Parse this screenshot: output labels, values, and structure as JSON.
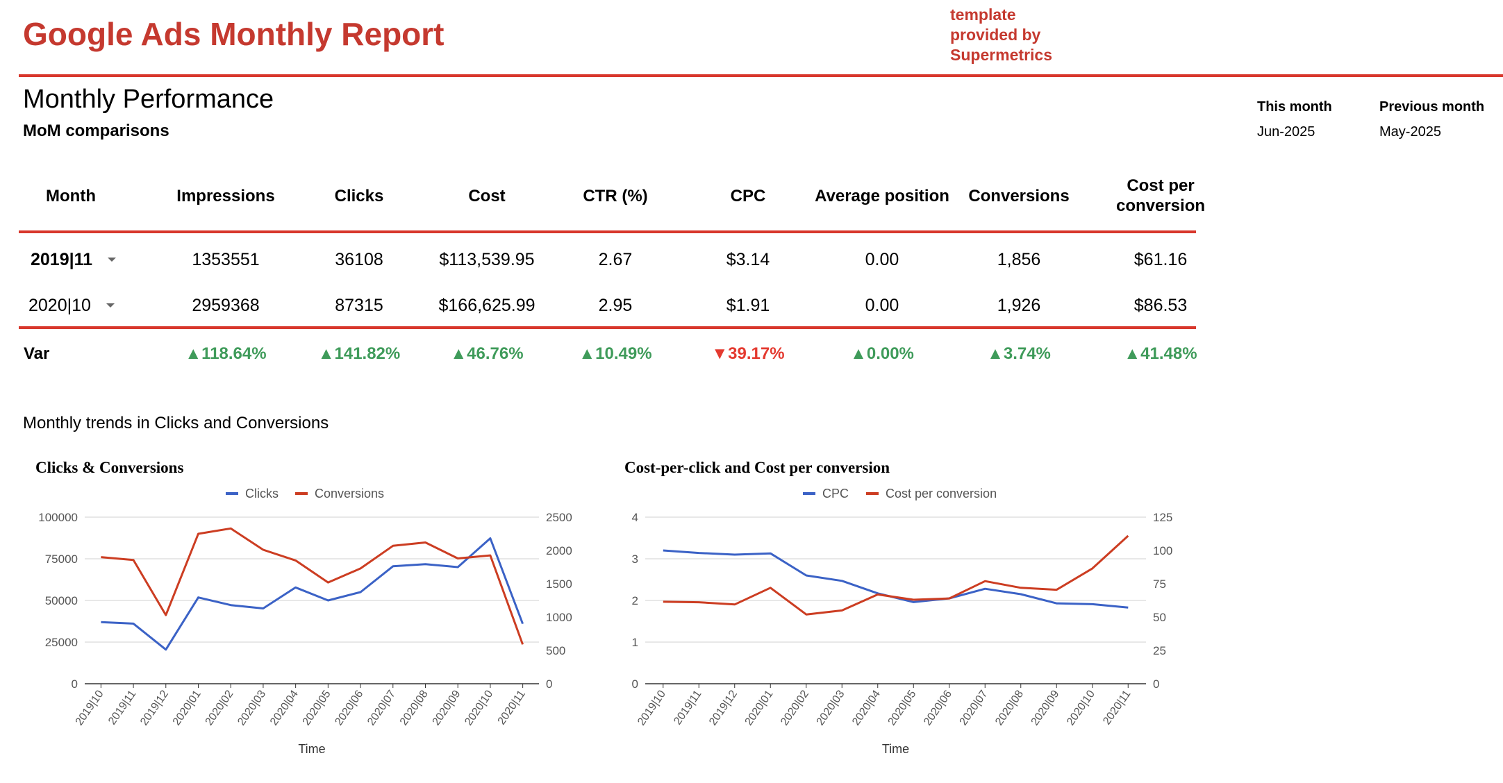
{
  "header": {
    "title": "Google Ads Monthly Report",
    "credit_line1": "template",
    "credit_line2": "provided by",
    "credit_line3": "Supermetrics"
  },
  "section": {
    "title": "Monthly Performance",
    "subtitle": "MoM comparisons"
  },
  "period": {
    "this_month_label": "This month",
    "this_month_value": "Jun-2025",
    "previous_month_label": "Previous month",
    "previous_month_value": "May-2025"
  },
  "table": {
    "headers": [
      "Month",
      "Impressions",
      "Clicks",
      "Cost",
      "CTR (%)",
      "CPC",
      "Average position",
      "Conversions",
      "Cost per conversion"
    ],
    "rows": [
      {
        "month": "2019|11",
        "impressions": "1353551",
        "clicks": "36108",
        "cost": "$113,539.95",
        "ctr": "2.67",
        "cpc": "$3.14",
        "avg_position": "0.00",
        "conversions": "1,856",
        "cost_per_conversion": "$61.16"
      },
      {
        "month": "2020|10",
        "impressions": "2959368",
        "clicks": "87315",
        "cost": "$166,625.99",
        "ctr": "2.95",
        "cpc": "$1.91",
        "avg_position": "0.00",
        "conversions": "1,926",
        "cost_per_conversion": "$86.53"
      }
    ],
    "var": {
      "label": "Var",
      "impressions": "118.64%",
      "clicks": "141.82%",
      "cost": "46.76%",
      "ctr": "10.49%",
      "cpc": "39.17%",
      "avg_position": "0.00%",
      "conversions": "3.74%",
      "cost_per_conversion": "41.48%"
    },
    "up_arrow": "▲",
    "down_arrow": "▼"
  },
  "trends": {
    "title": "Monthly trends in Clicks and Conversions"
  },
  "colors": {
    "brand_red": "#c5392f",
    "positive": "#3f9b5a",
    "negative": "#e43a30",
    "series_blue": "#3b62c6",
    "series_red": "#cc3d22"
  },
  "chart_data": [
    {
      "type": "line",
      "title": "Clicks & Conversions",
      "xlabel": "Time",
      "categories": [
        "2019|10",
        "2019|11",
        "2019|12",
        "2020|01",
        "2020|02",
        "2020|03",
        "2020|04",
        "2020|05",
        "2020|06",
        "2020|07",
        "2020|08",
        "2020|09",
        "2020|10",
        "2020|11"
      ],
      "series": [
        {
          "name": "Clicks",
          "axis": "left",
          "color": "#3b62c6",
          "values": [
            37000,
            36100,
            20500,
            51800,
            47200,
            45200,
            57800,
            50000,
            55000,
            70500,
            71800,
            70000,
            87300,
            36000
          ]
        },
        {
          "name": "Conversions",
          "axis": "right",
          "color": "#cc3d22",
          "values": [
            1900,
            1856,
            1030,
            2250,
            2330,
            2010,
            1850,
            1520,
            1730,
            2070,
            2120,
            1880,
            1926,
            590
          ]
        }
      ],
      "left_axis": {
        "min": 0,
        "max": 100000,
        "ticks": [
          0,
          25000,
          50000,
          75000,
          100000
        ]
      },
      "right_axis": {
        "min": 0,
        "max": 2500,
        "ticks": [
          0,
          500,
          1000,
          1500,
          2000,
          2500
        ]
      },
      "legend": "top"
    },
    {
      "type": "line",
      "title": "Cost-per-click and Cost per conversion",
      "xlabel": "Time",
      "categories": [
        "2019|10",
        "2019|11",
        "2019|12",
        "2020|01",
        "2020|02",
        "2020|03",
        "2020|04",
        "2020|05",
        "2020|06",
        "2020|07",
        "2020|08",
        "2020|09",
        "2020|10",
        "2020|11"
      ],
      "series": [
        {
          "name": "CPC",
          "axis": "left",
          "color": "#3b62c6",
          "values": [
            3.2,
            3.14,
            3.1,
            3.13,
            2.6,
            2.47,
            2.17,
            1.96,
            2.05,
            2.28,
            2.15,
            1.93,
            1.91,
            1.83
          ]
        },
        {
          "name": "Cost per conversion",
          "axis": "right",
          "color": "#cc3d22",
          "values": [
            61.5,
            61.16,
            59.5,
            72,
            52,
            55,
            67,
            63,
            64,
            77,
            72,
            70.5,
            86.53,
            111
          ]
        }
      ],
      "left_axis": {
        "min": 0,
        "max": 4,
        "ticks": [
          0,
          1,
          2,
          3,
          4
        ]
      },
      "right_axis": {
        "min": 0,
        "max": 125,
        "ticks": [
          0,
          25,
          50,
          75,
          100,
          125
        ]
      },
      "legend": "top"
    }
  ]
}
